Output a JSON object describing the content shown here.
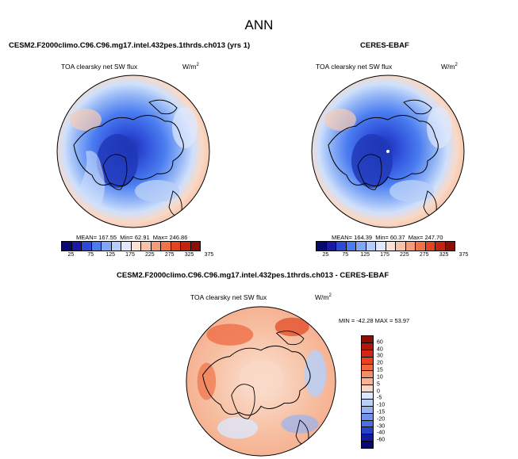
{
  "title": "ANN",
  "panels": [
    {
      "title": "CESM2.F2000climo.C96.C96.mg17.intel.432pes.1thrds.ch013 (yrs 1)",
      "variable": "TOA clearsky net SW flux",
      "units": "W/m",
      "units_sup": "2",
      "mean_label": "MEAN=",
      "mean": "167.55",
      "min_label": "Min=",
      "min": "62.91",
      "max_label": "Max=",
      "max": "246.86"
    },
    {
      "title": "CERES-EBAF",
      "variable": "TOA clearsky net SW flux",
      "units": "W/m",
      "units_sup": "2",
      "mean_label": "MEAN=",
      "mean": "164.39",
      "min_label": "Min=",
      "min": "60.37",
      "max_label": "Max=",
      "max": "247.70"
    }
  ],
  "diff_panel": {
    "title": "CESM2.F2000climo.C96.C96.mg17.intel.432pes.1thrds.ch013 - CERES-EBAF",
    "variable": "TOA clearsky net SW flux",
    "units": "W/m",
    "units_sup": "2",
    "minmax": "MIN = -42.28 MAX =  53.97"
  },
  "colorbar_abs": {
    "ticks": [
      "25",
      "75",
      "125",
      "175",
      "225",
      "275",
      "325",
      "375"
    ],
    "colors": [
      "#08086e",
      "#1a1aa6",
      "#2e49d6",
      "#4a7cf0",
      "#7ea7f5",
      "#b4cdfa",
      "#dfe8fc",
      "#fbe1d3",
      "#f7c2a7",
      "#f49c79",
      "#f07247",
      "#e3431f",
      "#c22410",
      "#8c0f05"
    ]
  },
  "colorbar_diff": {
    "ticks": [
      "60",
      "40",
      "30",
      "20",
      "15",
      "10",
      "5",
      "0",
      "-5",
      "-10",
      "-15",
      "-20",
      "-30",
      "-40",
      "-60"
    ],
    "colors": [
      "#8c0f05",
      "#b0180a",
      "#d02814",
      "#ea4220",
      "#f2663d",
      "#f48e66",
      "#f7b494",
      "#fad8c6",
      "#dde7fb",
      "#b9cff8",
      "#95b3f3",
      "#6f92ec",
      "#4a6fe3",
      "#2443c8",
      "#101ba0",
      "#08086e"
    ]
  }
}
